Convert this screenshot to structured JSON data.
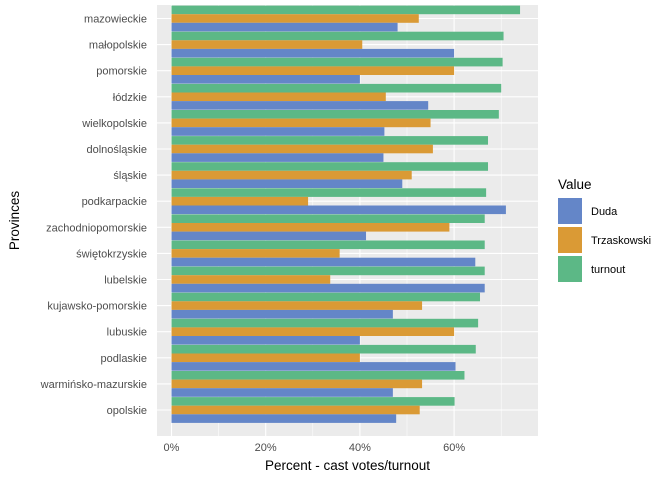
{
  "chart_data": {
    "type": "bar",
    "orientation": "horizontal",
    "xlabel": "Percent - cast votes/turnout",
    "ylabel": "Provinces",
    "xlim": [
      0,
      0.78
    ],
    "x_ticks": [
      0,
      0.2,
      0.4,
      0.6
    ],
    "x_tick_labels": [
      "0%",
      "20%",
      "40%",
      "60%"
    ],
    "grid": true,
    "legend": {
      "title": "Value",
      "position": "right"
    },
    "categories": [
      "mazowieckie",
      "małopolskie",
      "pomorskie",
      "łódzkie",
      "wielkopolskie",
      "dolnośląskie",
      "śląskie",
      "podkarpackie",
      "zachodniopomorskie",
      "świętokrzyskie",
      "lubelskie",
      "kujawsko-pomorskie",
      "lubuskie",
      "podlaskie",
      "warmińsko-mazurskie",
      "opolskie"
    ],
    "series": [
      {
        "name": "Duda",
        "color": "#6486c8",
        "values": [
          0.48,
          0.6,
          0.4,
          0.545,
          0.452,
          0.45,
          0.49,
          0.71,
          0.413,
          0.645,
          0.665,
          0.47,
          0.4,
          0.603,
          0.47,
          0.477
        ]
      },
      {
        "name": "Trzaskowski",
        "color": "#da9a35",
        "values": [
          0.525,
          0.405,
          0.6,
          0.455,
          0.55,
          0.555,
          0.51,
          0.29,
          0.59,
          0.357,
          0.337,
          0.532,
          0.6,
          0.4,
          0.532,
          0.527
        ]
      },
      {
        "name": "turnout",
        "color": "#5cb886",
        "values": [
          0.74,
          0.705,
          0.703,
          0.7,
          0.695,
          0.672,
          0.672,
          0.668,
          0.665,
          0.665,
          0.665,
          0.655,
          0.651,
          0.646,
          0.622,
          0.601
        ]
      }
    ]
  }
}
